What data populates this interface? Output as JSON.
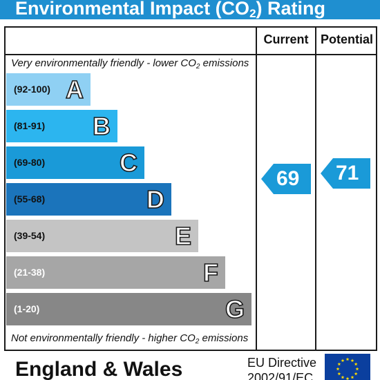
{
  "title": {
    "main": "Environmental Impact (CO",
    "sub": "2",
    "tail": ") Rating"
  },
  "columns": {
    "current": "Current",
    "potential": "Potential"
  },
  "notes": {
    "top": {
      "text": "Very environmentally friendly - lower CO",
      "sub": "2",
      "tail": " emissions"
    },
    "bottom": {
      "text": "Not environmentally friendly - higher CO",
      "sub": "2",
      "tail": " emissions"
    }
  },
  "bands": [
    {
      "range": "(92-100)",
      "letter": "A",
      "color": "#8fd0f3",
      "range_color": "#111111"
    },
    {
      "range": "(81-91)",
      "letter": "B",
      "color": "#2cb5ef",
      "range_color": "#111111"
    },
    {
      "range": "(69-80)",
      "letter": "C",
      "color": "#1a9ad8",
      "range_color": "#111111"
    },
    {
      "range": "(55-68)",
      "letter": "D",
      "color": "#1b74bb",
      "range_color": "#111111"
    },
    {
      "range": "(39-54)",
      "letter": "E",
      "color": "#c4c4c4",
      "range_color": "#111111"
    },
    {
      "range": "(21-38)",
      "letter": "F",
      "color": "#a6a6a6",
      "range_color": "#ffffff"
    },
    {
      "range": "(1-20)",
      "letter": "G",
      "color": "#878787",
      "range_color": "#ffffff"
    }
  ],
  "ratings": {
    "current": {
      "value": "69",
      "color": "#1a9ad8"
    },
    "potential": {
      "value": "71",
      "color": "#1a9ad8"
    }
  },
  "footer": {
    "region": "England & Wales",
    "directive_line1": "EU Directive",
    "directive_line2": "2002/91/EC",
    "flag_icon": "eu-flag-icon"
  }
}
